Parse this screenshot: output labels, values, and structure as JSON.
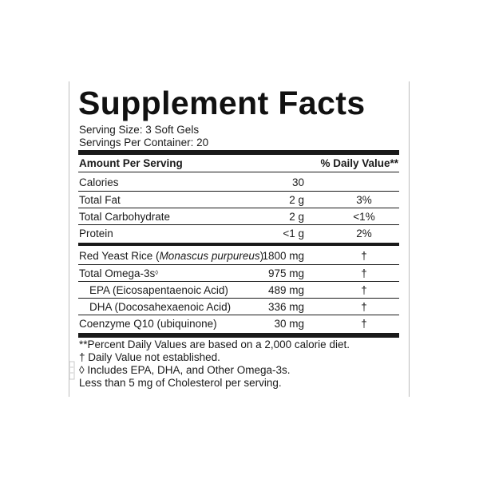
{
  "title": "Supplement Facts",
  "serving_size": "Serving Size: 3 Soft Gels",
  "servings_per_container": "Servings Per Container: 20",
  "header": {
    "amount_label": "Amount Per Serving",
    "dv_label": "% Daily Value**"
  },
  "nutrients": [
    {
      "name": "Calories",
      "amount": "30",
      "dv": ""
    },
    {
      "name": "Total Fat",
      "amount": "2 g",
      "dv": "3%"
    },
    {
      "name": "Total Carbohydrate",
      "amount": "2 g",
      "dv": "<1%"
    },
    {
      "name": "Protein",
      "amount": "<1 g",
      "dv": "2%"
    }
  ],
  "ingredients": {
    "red_yeast_rice": {
      "name": "Red Yeast Rice (",
      "latin": "Monascus purpureus",
      "close": ")",
      "amount": "1800 mg",
      "dv": "†"
    },
    "omega3": {
      "name": "Total Omega-3s",
      "mark": "◊",
      "amount": "975 mg",
      "dv": "†"
    },
    "epa": {
      "name": "EPA (Eicosapentaenoic Acid)",
      "amount": "489 mg",
      "dv": "†"
    },
    "dha": {
      "name": "DHA (Docosahexaenoic Acid)",
      "amount": "336 mg",
      "dv": "†"
    },
    "coq10": {
      "name": "Coenzyme Q10 (ubiquinone)",
      "amount": "30 mg",
      "dv": "†"
    }
  },
  "footnotes": [
    "**Percent Daily Values are based on a 2,000 calorie diet.",
    "† Daily Value not established.",
    "◊ Includes EPA, DHA, and Other Omega-3s.",
    "Less than 5 mg of Cholesterol per serving."
  ]
}
